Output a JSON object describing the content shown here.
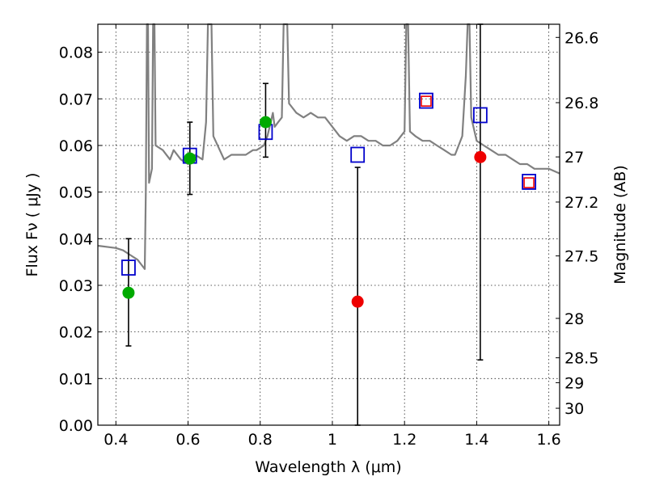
{
  "chart_data": {
    "type": "scatter",
    "title": "",
    "xlabel": "Wavelength  λ (μm)",
    "ylabel": "Flux  Fν  ( μJy )",
    "ylabel_right": "Magnitude (AB)",
    "xlim": [
      0.35,
      1.63
    ],
    "ylim": [
      0.0,
      0.086
    ],
    "grid": true,
    "x_ticks": [
      0.4,
      0.6,
      0.8,
      1.0,
      1.2,
      1.4,
      1.6
    ],
    "x_tick_labels": [
      "0.4",
      "0.6",
      "0.8",
      "1",
      "1.2",
      "1.4",
      "1.6"
    ],
    "y_ticks": [
      0.0,
      0.01,
      0.02,
      0.03,
      0.04,
      0.05,
      0.06,
      0.07,
      0.08
    ],
    "y_tick_labels": [
      "0.00",
      "0.01",
      "0.02",
      "0.03",
      "0.04",
      "0.05",
      "0.06",
      "0.07",
      "0.08"
    ],
    "right_ticks": [
      {
        "label": "26.6",
        "mag": 26.6
      },
      {
        "label": "26.8",
        "mag": 26.8
      },
      {
        "label": "27",
        "mag": 27.0
      },
      {
        "label": "27.2",
        "mag": 27.2
      },
      {
        "label": "27.5",
        "mag": 27.5
      },
      {
        "label": "28",
        "mag": 28.0
      },
      {
        "label": "28.5",
        "mag": 28.5
      },
      {
        "label": "29",
        "mag": 29.0
      },
      {
        "label": "30",
        "mag": 30.0
      }
    ],
    "colors": {
      "sed": "#808080",
      "model": "#0000cc",
      "detection": "#00aa00",
      "nondetection": "#ee0000",
      "errorbar": "#000000"
    },
    "series": [
      {
        "type": "line",
        "points": [
          [
            0.35,
            0.0385
          ],
          [
            0.38,
            0.0382
          ],
          [
            0.4,
            0.038
          ],
          [
            0.42,
            0.0375
          ],
          [
            0.44,
            0.0365
          ],
          [
            0.46,
            0.0355
          ],
          [
            0.47,
            0.0345
          ],
          [
            0.48,
            0.0335
          ],
          [
            0.483,
            0.05
          ],
          [
            0.486,
            0.086
          ],
          [
            0.489,
            0.086
          ],
          [
            0.492,
            0.052
          ],
          [
            0.5,
            0.055
          ],
          [
            0.503,
            0.086
          ],
          [
            0.507,
            0.086
          ],
          [
            0.51,
            0.06
          ],
          [
            0.53,
            0.059
          ],
          [
            0.55,
            0.057
          ],
          [
            0.56,
            0.059
          ],
          [
            0.58,
            0.057
          ],
          [
            0.6,
            0.056
          ],
          [
            0.62,
            0.058
          ],
          [
            0.64,
            0.057
          ],
          [
            0.65,
            0.065
          ],
          [
            0.655,
            0.086
          ],
          [
            0.665,
            0.086
          ],
          [
            0.67,
            0.062
          ],
          [
            0.7,
            0.057
          ],
          [
            0.72,
            0.058
          ],
          [
            0.74,
            0.058
          ],
          [
            0.76,
            0.058
          ],
          [
            0.78,
            0.059
          ],
          [
            0.79,
            0.059
          ],
          [
            0.81,
            0.06
          ],
          [
            0.82,
            0.062
          ],
          [
            0.835,
            0.067
          ],
          [
            0.84,
            0.064
          ],
          [
            0.85,
            0.065
          ],
          [
            0.86,
            0.066
          ],
          [
            0.865,
            0.086
          ],
          [
            0.875,
            0.086
          ],
          [
            0.88,
            0.069
          ],
          [
            0.9,
            0.067
          ],
          [
            0.92,
            0.066
          ],
          [
            0.94,
            0.067
          ],
          [
            0.96,
            0.066
          ],
          [
            0.98,
            0.066
          ],
          [
            1.0,
            0.064
          ],
          [
            1.02,
            0.062
          ],
          [
            1.04,
            0.061
          ],
          [
            1.06,
            0.062
          ],
          [
            1.08,
            0.062
          ],
          [
            1.1,
            0.061
          ],
          [
            1.12,
            0.061
          ],
          [
            1.14,
            0.06
          ],
          [
            1.16,
            0.06
          ],
          [
            1.18,
            0.061
          ],
          [
            1.19,
            0.062
          ],
          [
            1.2,
            0.063
          ],
          [
            1.205,
            0.086
          ],
          [
            1.21,
            0.086
          ],
          [
            1.215,
            0.063
          ],
          [
            1.23,
            0.062
          ],
          [
            1.25,
            0.061
          ],
          [
            1.27,
            0.061
          ],
          [
            1.29,
            0.06
          ],
          [
            1.31,
            0.059
          ],
          [
            1.33,
            0.058
          ],
          [
            1.34,
            0.058
          ],
          [
            1.36,
            0.062
          ],
          [
            1.37,
            0.075
          ],
          [
            1.375,
            0.086
          ],
          [
            1.38,
            0.086
          ],
          [
            1.385,
            0.066
          ],
          [
            1.4,
            0.061
          ],
          [
            1.42,
            0.06
          ],
          [
            1.44,
            0.059
          ],
          [
            1.46,
            0.058
          ],
          [
            1.48,
            0.058
          ],
          [
            1.5,
            0.057
          ],
          [
            1.52,
            0.056
          ],
          [
            1.54,
            0.056
          ],
          [
            1.56,
            0.055
          ],
          [
            1.58,
            0.055
          ],
          [
            1.6,
            0.055
          ],
          [
            1.63,
            0.054
          ]
        ]
      },
      {
        "type": "scatter",
        "points": [
          [
            0.435,
            0.0338
          ],
          [
            0.605,
            0.0578
          ],
          [
            0.815,
            0.0629
          ],
          [
            1.07,
            0.058
          ],
          [
            1.26,
            0.0696
          ],
          [
            1.41,
            0.0665
          ],
          [
            1.545,
            0.0522
          ]
        ]
      },
      {
        "type": "scatter",
        "points": [
          [
            0.435,
            0.0284,
            0.017,
            0.04
          ],
          [
            0.605,
            0.0572,
            0.0495,
            0.065
          ],
          [
            0.815,
            0.065,
            0.0575,
            0.0733
          ]
        ]
      },
      {
        "type": "scatter",
        "points": [
          [
            1.07,
            0.0265,
            0.0,
            0.0553
          ],
          [
            1.41,
            0.0575,
            0.014,
            0.086
          ],
          [
            1.26,
            0.0695,
            null,
            null
          ],
          [
            1.545,
            0.052,
            null,
            null
          ]
        ]
      }
    ]
  }
}
